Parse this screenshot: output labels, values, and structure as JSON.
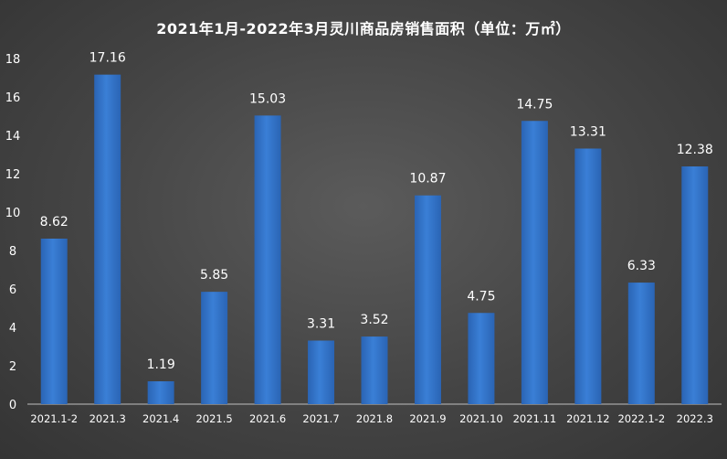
{
  "chart_data": {
    "type": "bar",
    "title": "2021年1月-2022年3月灵川商品房销售面积（单位：万㎡）",
    "categories": [
      "2021.1-2",
      "2021.3",
      "2021.4",
      "2021.5",
      "2021.6",
      "2021.7",
      "2021.8",
      "2021.9",
      "2021.10",
      "2021.11",
      "2021.12",
      "2022.1-2",
      "2022.3"
    ],
    "values": [
      8.62,
      17.16,
      1.19,
      5.85,
      15.03,
      3.31,
      3.52,
      10.87,
      4.75,
      14.75,
      13.31,
      6.33,
      12.38
    ],
    "value_labels": [
      "8.62",
      "17.16",
      "1.19",
      "5.85",
      "15.03",
      "3.31",
      "3.52",
      "10.87",
      "4.75",
      "14.75",
      "13.31",
      "6.33",
      "12.38"
    ],
    "ylim": [
      0,
      18
    ],
    "yticks": [
      "0",
      "2",
      "4",
      "6",
      "8",
      "10",
      "12",
      "14",
      "16",
      "18"
    ],
    "xlabel": "",
    "ylabel": "",
    "grid": false,
    "legend": "none",
    "colors": {
      "bar": "#3a7fd6",
      "bar_dark": "#2a64b4",
      "text": "#ffffff",
      "axis": "#bfbfbf"
    }
  }
}
